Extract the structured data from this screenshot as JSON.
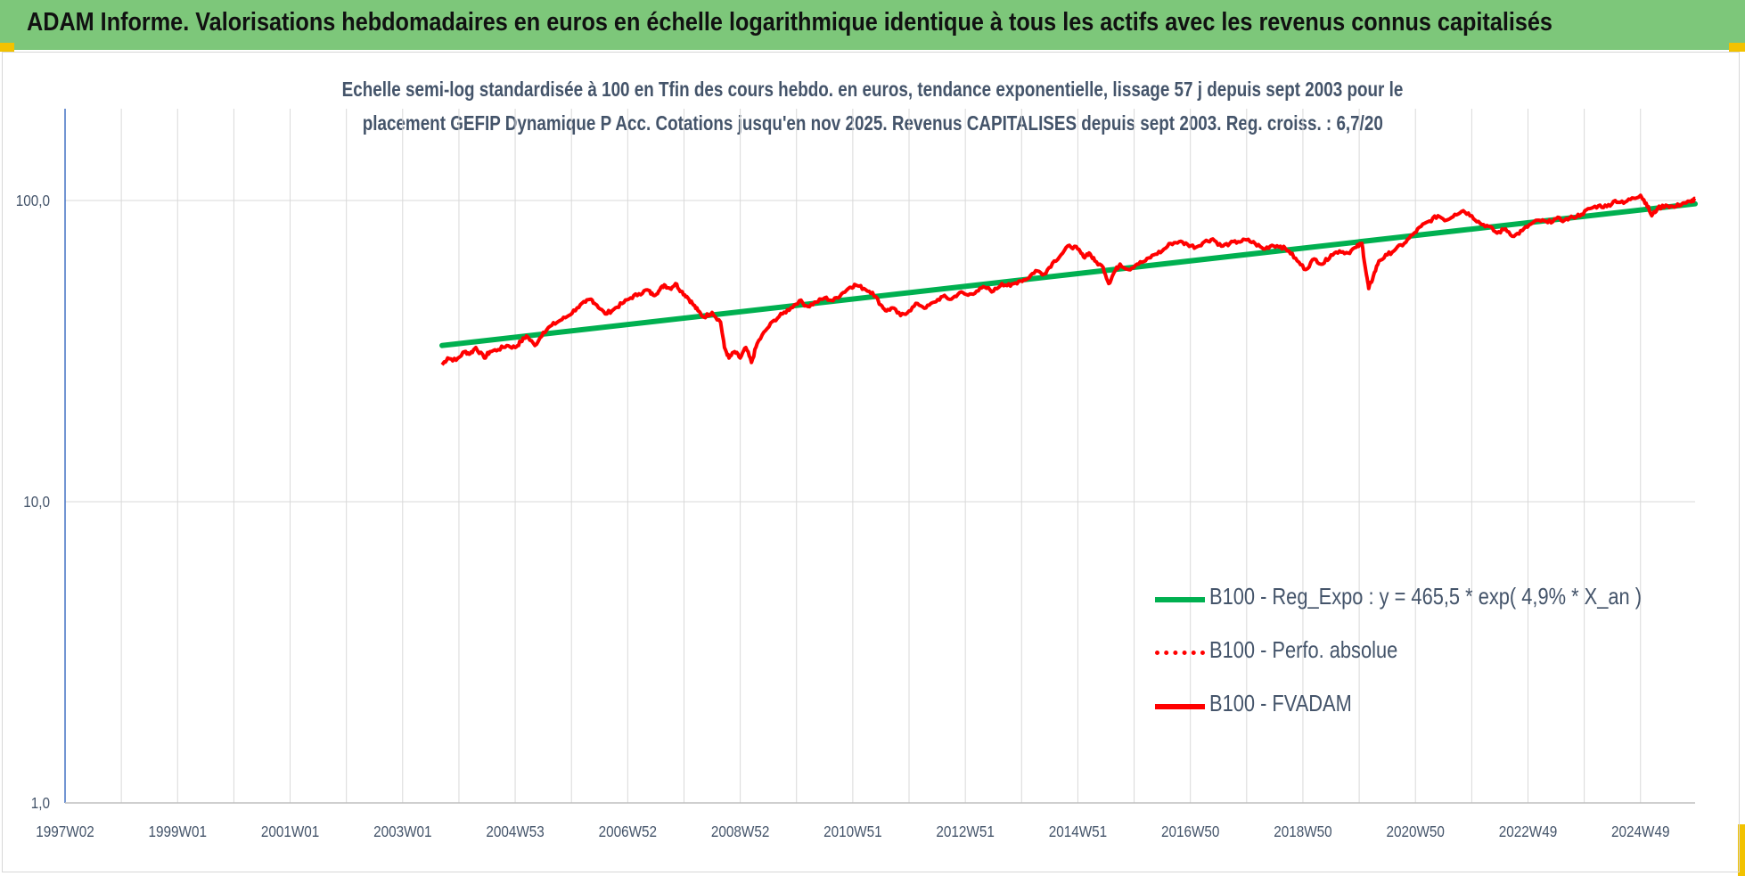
{
  "banner_title": "ADAM Informe. Valorisations hebdomadaires en euros en échelle logarithmique identique à tous les actifs avec les revenus connus capitalisés",
  "colors": {
    "banner": "#7dc77a",
    "corner": "#f2c200",
    "regression": "#00b050",
    "perf": "#ff0000",
    "fvadam": "#ff0000",
    "text": "#44546a"
  },
  "chart_data": {
    "type": "line",
    "title_lines": [
      "Echelle semi-log standardisée à 100 en Tfin des cours hebdo. en euros, tendance exponentielle, lissage 57 j depuis sept 2003 pour le",
      "placement GEFIP Dynamique P Acc. Cotations jusqu'en nov 2025. Revenus CAPITALISES depuis sept 2003. Reg. croiss. : 6,7/20"
    ],
    "y_scale": "log",
    "ylim": [
      1,
      200
    ],
    "y_ticks": [
      1,
      10,
      100
    ],
    "y_tick_labels": [
      "1,0",
      "10,0",
      "100,0"
    ],
    "x_range": [
      1997.0,
      2025.97
    ],
    "x_ticks": [
      1997.0,
      1999.0,
      2001.0,
      2003.0,
      2005.0,
      2007.0,
      2009.0,
      2011.0,
      2013.0,
      2015.0,
      2017.0,
      2019.0,
      2021.0,
      2023.0,
      2025.0
    ],
    "x_tick_labels": [
      "1997W02",
      "1999W01",
      "2001W01",
      "2003W01",
      "2004W53",
      "2006W52",
      "2008W52",
      "2010W51",
      "2012W51",
      "2014W51",
      "2016W50",
      "2018W50",
      "2020W50",
      "2022W49",
      "2024W49"
    ],
    "x_grid": [
      1997.0,
      1998.0,
      1999.0,
      2000.0,
      2001.0,
      2002.0,
      2003.0,
      2004.0,
      2005.0,
      2006.0,
      2007.0,
      2008.0,
      2009.0,
      2010.0,
      2011.0,
      2012.0,
      2013.0,
      2014.0,
      2015.0,
      2016.0,
      2017.0,
      2018.0,
      2019.0,
      2020.0,
      2021.0,
      2022.0,
      2023.0,
      2024.0,
      2025.0,
      2026.0
    ],
    "grid": true,
    "legend_position": "bottom-right",
    "series": [
      {
        "name": "B100 - Reg_Expo : y = 465,5 * exp( 4,9% *  X_an )",
        "style": "solid-green",
        "x": [
          2003.7,
          2025.97
        ],
        "y": [
          33.0,
          97.5
        ]
      },
      {
        "name": "B100 - Perfo. absolue",
        "style": "dotted-red",
        "x": [],
        "y": []
      },
      {
        "name": "B100 - FVADAM",
        "style": "solid-red",
        "x": [
          2003.7,
          2003.8,
          2003.95,
          2004.1,
          2004.2,
          2004.3,
          2004.45,
          2004.55,
          2004.7,
          2004.85,
          2005.0,
          2005.1,
          2005.2,
          2005.35,
          2005.5,
          2005.65,
          2005.8,
          2005.95,
          2006.1,
          2006.25,
          2006.35,
          2006.45,
          2006.6,
          2006.75,
          2006.9,
          2007.05,
          2007.2,
          2007.35,
          2007.45,
          2007.55,
          2007.65,
          2007.75,
          2007.85,
          2007.95,
          2008.05,
          2008.15,
          2008.25,
          2008.35,
          2008.5,
          2008.65,
          2008.72,
          2008.8,
          2008.9,
          2009.0,
          2009.1,
          2009.2,
          2009.3,
          2009.45,
          2009.6,
          2009.75,
          2009.9,
          2010.05,
          2010.2,
          2010.35,
          2010.5,
          2010.65,
          2010.8,
          2010.95,
          2011.05,
          2011.2,
          2011.35,
          2011.5,
          2011.6,
          2011.7,
          2011.85,
          2012.0,
          2012.15,
          2012.3,
          2012.45,
          2012.6,
          2012.75,
          2012.9,
          2013.05,
          2013.2,
          2013.35,
          2013.5,
          2013.65,
          2013.8,
          2013.95,
          2014.1,
          2014.25,
          2014.4,
          2014.55,
          2014.7,
          2014.85,
          2015.0,
          2015.1,
          2015.2,
          2015.3,
          2015.45,
          2015.55,
          2015.65,
          2015.75,
          2015.9,
          2016.05,
          2016.2,
          2016.35,
          2016.5,
          2016.65,
          2016.8,
          2016.95,
          2017.1,
          2017.25,
          2017.4,
          2017.55,
          2017.7,
          2017.85,
          2018.0,
          2018.15,
          2018.3,
          2018.45,
          2018.6,
          2018.75,
          2018.9,
          2019.05,
          2019.2,
          2019.35,
          2019.5,
          2019.65,
          2019.8,
          2019.95,
          2020.05,
          2020.12,
          2020.17,
          2020.25,
          2020.35,
          2020.5,
          2020.65,
          2020.8,
          2020.95,
          2021.1,
          2021.25,
          2021.4,
          2021.55,
          2021.7,
          2021.85,
          2022.0,
          2022.15,
          2022.3,
          2022.45,
          2022.6,
          2022.75,
          2022.9,
          2023.05,
          2023.2,
          2023.35,
          2023.5,
          2023.65,
          2023.8,
          2023.95,
          2024.1,
          2024.25,
          2024.4,
          2024.55,
          2024.7,
          2024.85,
          2025.0,
          2025.1,
          2025.2,
          2025.3,
          2025.45,
          2025.6,
          2025.75,
          2025.9,
          2025.97
        ],
        "y": [
          28.5,
          30.0,
          29.5,
          31.5,
          31.0,
          32.5,
          30.0,
          31.5,
          32.0,
          33.0,
          32.5,
          34.0,
          35.5,
          33.0,
          36.5,
          38.5,
          40.0,
          41.5,
          44.0,
          46.0,
          47.0,
          45.0,
          42.0,
          43.5,
          45.5,
          47.5,
          49.0,
          50.5,
          48.5,
          50.0,
          52.5,
          51.0,
          53.0,
          50.0,
          48.0,
          45.5,
          43.0,
          41.0,
          42.5,
          39.5,
          32.5,
          30.0,
          31.5,
          30.0,
          32.5,
          29.0,
          33.5,
          37.0,
          40.0,
          42.0,
          44.0,
          46.5,
          44.5,
          46.0,
          47.5,
          46.5,
          49.0,
          51.5,
          52.5,
          51.0,
          49.5,
          45.0,
          43.0,
          44.0,
          41.5,
          43.0,
          45.5,
          44.0,
          46.0,
          48.0,
          47.0,
          49.5,
          48.5,
          50.0,
          51.5,
          50.0,
          53.0,
          52.0,
          54.0,
          55.0,
          58.5,
          57.0,
          62.0,
          66.0,
          71.0,
          69.0,
          65.0,
          67.0,
          63.0,
          60.0,
          53.0,
          58.0,
          61.5,
          59.0,
          61.5,
          63.0,
          66.0,
          68.0,
          72.0,
          73.0,
          71.5,
          70.0,
          73.0,
          74.5,
          70.5,
          72.0,
          73.0,
          74.0,
          72.0,
          69.0,
          71.0,
          70.5,
          68.0,
          63.0,
          59.0,
          64.0,
          61.5,
          66.0,
          68.0,
          67.0,
          70.0,
          72.0,
          58.0,
          51.0,
          56.0,
          63.0,
          66.0,
          69.0,
          72.0,
          77.0,
          82.0,
          85.5,
          89.0,
          86.0,
          90.0,
          92.5,
          89.0,
          84.0,
          82.0,
          78.0,
          80.5,
          76.0,
          79.5,
          83.5,
          86.0,
          84.5,
          87.0,
          86.0,
          88.0,
          90.0,
          94.0,
          96.0,
          95.5,
          100.0,
          98.0,
          102.0,
          104.0,
          98.0,
          89.0,
          94.0,
          96.5,
          95.0,
          98.0,
          99.0,
          101.5
        ]
      }
    ]
  }
}
